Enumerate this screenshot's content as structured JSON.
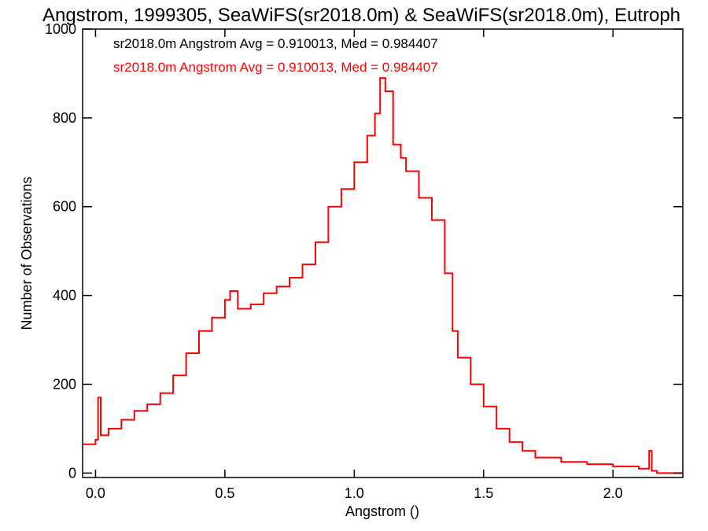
{
  "chart_data": {
    "type": "histogram",
    "title": "Angstrom, 1999305, SeaWiFS(sr2018.0m) & SeaWiFS(sr2018.0m), Eutroph",
    "xlabel": "Angstrom ()",
    "ylabel": "Number of Observations",
    "xlim": [
      -0.05,
      2.27
    ],
    "ylim": [
      -10,
      1000
    ],
    "x_ticks": [
      0.0,
      0.5,
      1.0,
      1.5,
      2.0
    ],
    "x_tick_labels": [
      "0.0",
      "0.5",
      "1.0",
      "1.5",
      "2.0"
    ],
    "y_ticks": [
      0,
      200,
      400,
      600,
      800,
      1000
    ],
    "y_tick_labels": [
      "0",
      "200",
      "400",
      "600",
      "800",
      "1000"
    ],
    "grid": false,
    "legend_position": "top-left",
    "legend": [
      {
        "text": "sr2018.0m Angstrom Avg = 0.910013, Med = 0.984407",
        "color": "#000000"
      },
      {
        "text": "sr2018.0m Angstrom Avg = 0.910013, Med = 0.984407",
        "color": "#ff0000"
      }
    ],
    "series": [
      {
        "color": "#ff0000",
        "step": true,
        "x": [
          -0.05,
          0.0,
          0.01,
          0.02,
          0.05,
          0.1,
          0.15,
          0.2,
          0.25,
          0.3,
          0.35,
          0.4,
          0.45,
          0.5,
          0.52,
          0.55,
          0.6,
          0.65,
          0.7,
          0.75,
          0.8,
          0.85,
          0.9,
          0.95,
          1.0,
          1.05,
          1.08,
          1.1,
          1.12,
          1.15,
          1.18,
          1.2,
          1.25,
          1.3,
          1.35,
          1.38,
          1.4,
          1.45,
          1.5,
          1.55,
          1.6,
          1.65,
          1.7,
          1.8,
          1.9,
          2.0,
          2.1,
          2.14,
          2.15,
          2.17,
          2.27
        ],
        "y": [
          65,
          75,
          170,
          85,
          100,
          120,
          140,
          155,
          180,
          220,
          270,
          320,
          350,
          390,
          410,
          370,
          380,
          405,
          420,
          440,
          470,
          520,
          600,
          640,
          700,
          760,
          810,
          890,
          860,
          740,
          710,
          680,
          620,
          570,
          450,
          320,
          260,
          200,
          150,
          100,
          70,
          50,
          35,
          25,
          20,
          15,
          10,
          50,
          5,
          0,
          0
        ]
      }
    ]
  }
}
